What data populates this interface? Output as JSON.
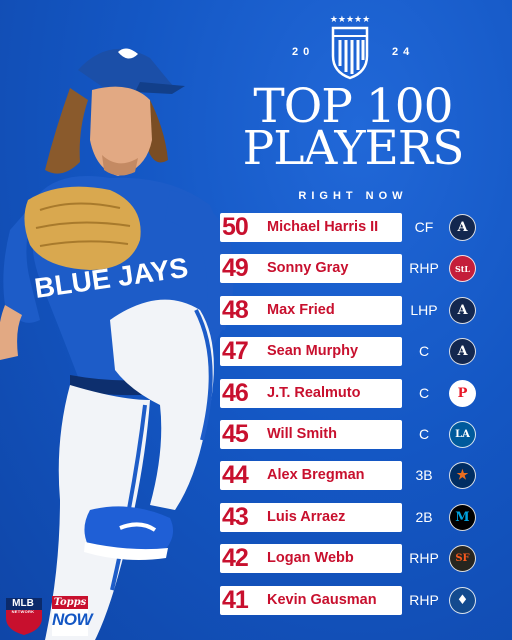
{
  "header": {
    "year_left": "2 0",
    "year_right": "2 4",
    "title_line1": "TOP 100",
    "title_line2": "PLAYERS",
    "subtitle": "RIGHT NOW"
  },
  "players": [
    {
      "rank": "50",
      "name": "Michael Harris II",
      "position": "CF",
      "team_icon": "braves-a-icon",
      "logo_text": "A",
      "logo_bg": "#13274f",
      "logo_fg": "#ffffff"
    },
    {
      "rank": "49",
      "name": "Sonny Gray",
      "position": "RHP",
      "team_icon": "cardinals-stl-icon",
      "logo_text": "StL",
      "logo_bg": "#c41e3a",
      "logo_fg": "#ffffff"
    },
    {
      "rank": "48",
      "name": "Max Fried",
      "position": "LHP",
      "team_icon": "braves-a-icon",
      "logo_text": "A",
      "logo_bg": "#13274f",
      "logo_fg": "#ffffff"
    },
    {
      "rank": "47",
      "name": "Sean Murphy",
      "position": "C",
      "team_icon": "braves-a-icon",
      "logo_text": "A",
      "logo_bg": "#13274f",
      "logo_fg": "#ffffff"
    },
    {
      "rank": "46",
      "name": "J.T. Realmuto",
      "position": "C",
      "team_icon": "phillies-p-icon",
      "logo_text": "P",
      "logo_bg": "#ffffff",
      "logo_fg": "#e81828"
    },
    {
      "rank": "45",
      "name": "Will Smith",
      "position": "C",
      "team_icon": "dodgers-la-icon",
      "logo_text": "LA",
      "logo_bg": "#005a9c",
      "logo_fg": "#ffffff"
    },
    {
      "rank": "44",
      "name": "Alex Bregman",
      "position": "3B",
      "team_icon": "astros-star-icon",
      "logo_text": "★",
      "logo_bg": "#002d62",
      "logo_fg": "#eb6e1f"
    },
    {
      "rank": "43",
      "name": "Luis Arraez",
      "position": "2B",
      "team_icon": "marlins-m-icon",
      "logo_text": "M",
      "logo_bg": "#000000",
      "logo_fg": "#00a3e0"
    },
    {
      "rank": "42",
      "name": "Logan Webb",
      "position": "RHP",
      "team_icon": "giants-sf-icon",
      "logo_text": "SF",
      "logo_bg": "#27251f",
      "logo_fg": "#fd5a1e"
    },
    {
      "rank": "41",
      "name": "Kevin Gausman",
      "position": "RHP",
      "team_icon": "blue-jays-icon",
      "logo_text": "♦",
      "logo_bg": "#134a8e",
      "logo_fg": "#ffffff"
    }
  ],
  "footer": {
    "mlb_network": "MLB",
    "mlb_network_sub": "NETWORK",
    "topps": "Topps",
    "now": "NOW"
  },
  "colors": {
    "background": "#1457c4",
    "rank_red": "#c8102e",
    "row_white": "#ffffff"
  }
}
